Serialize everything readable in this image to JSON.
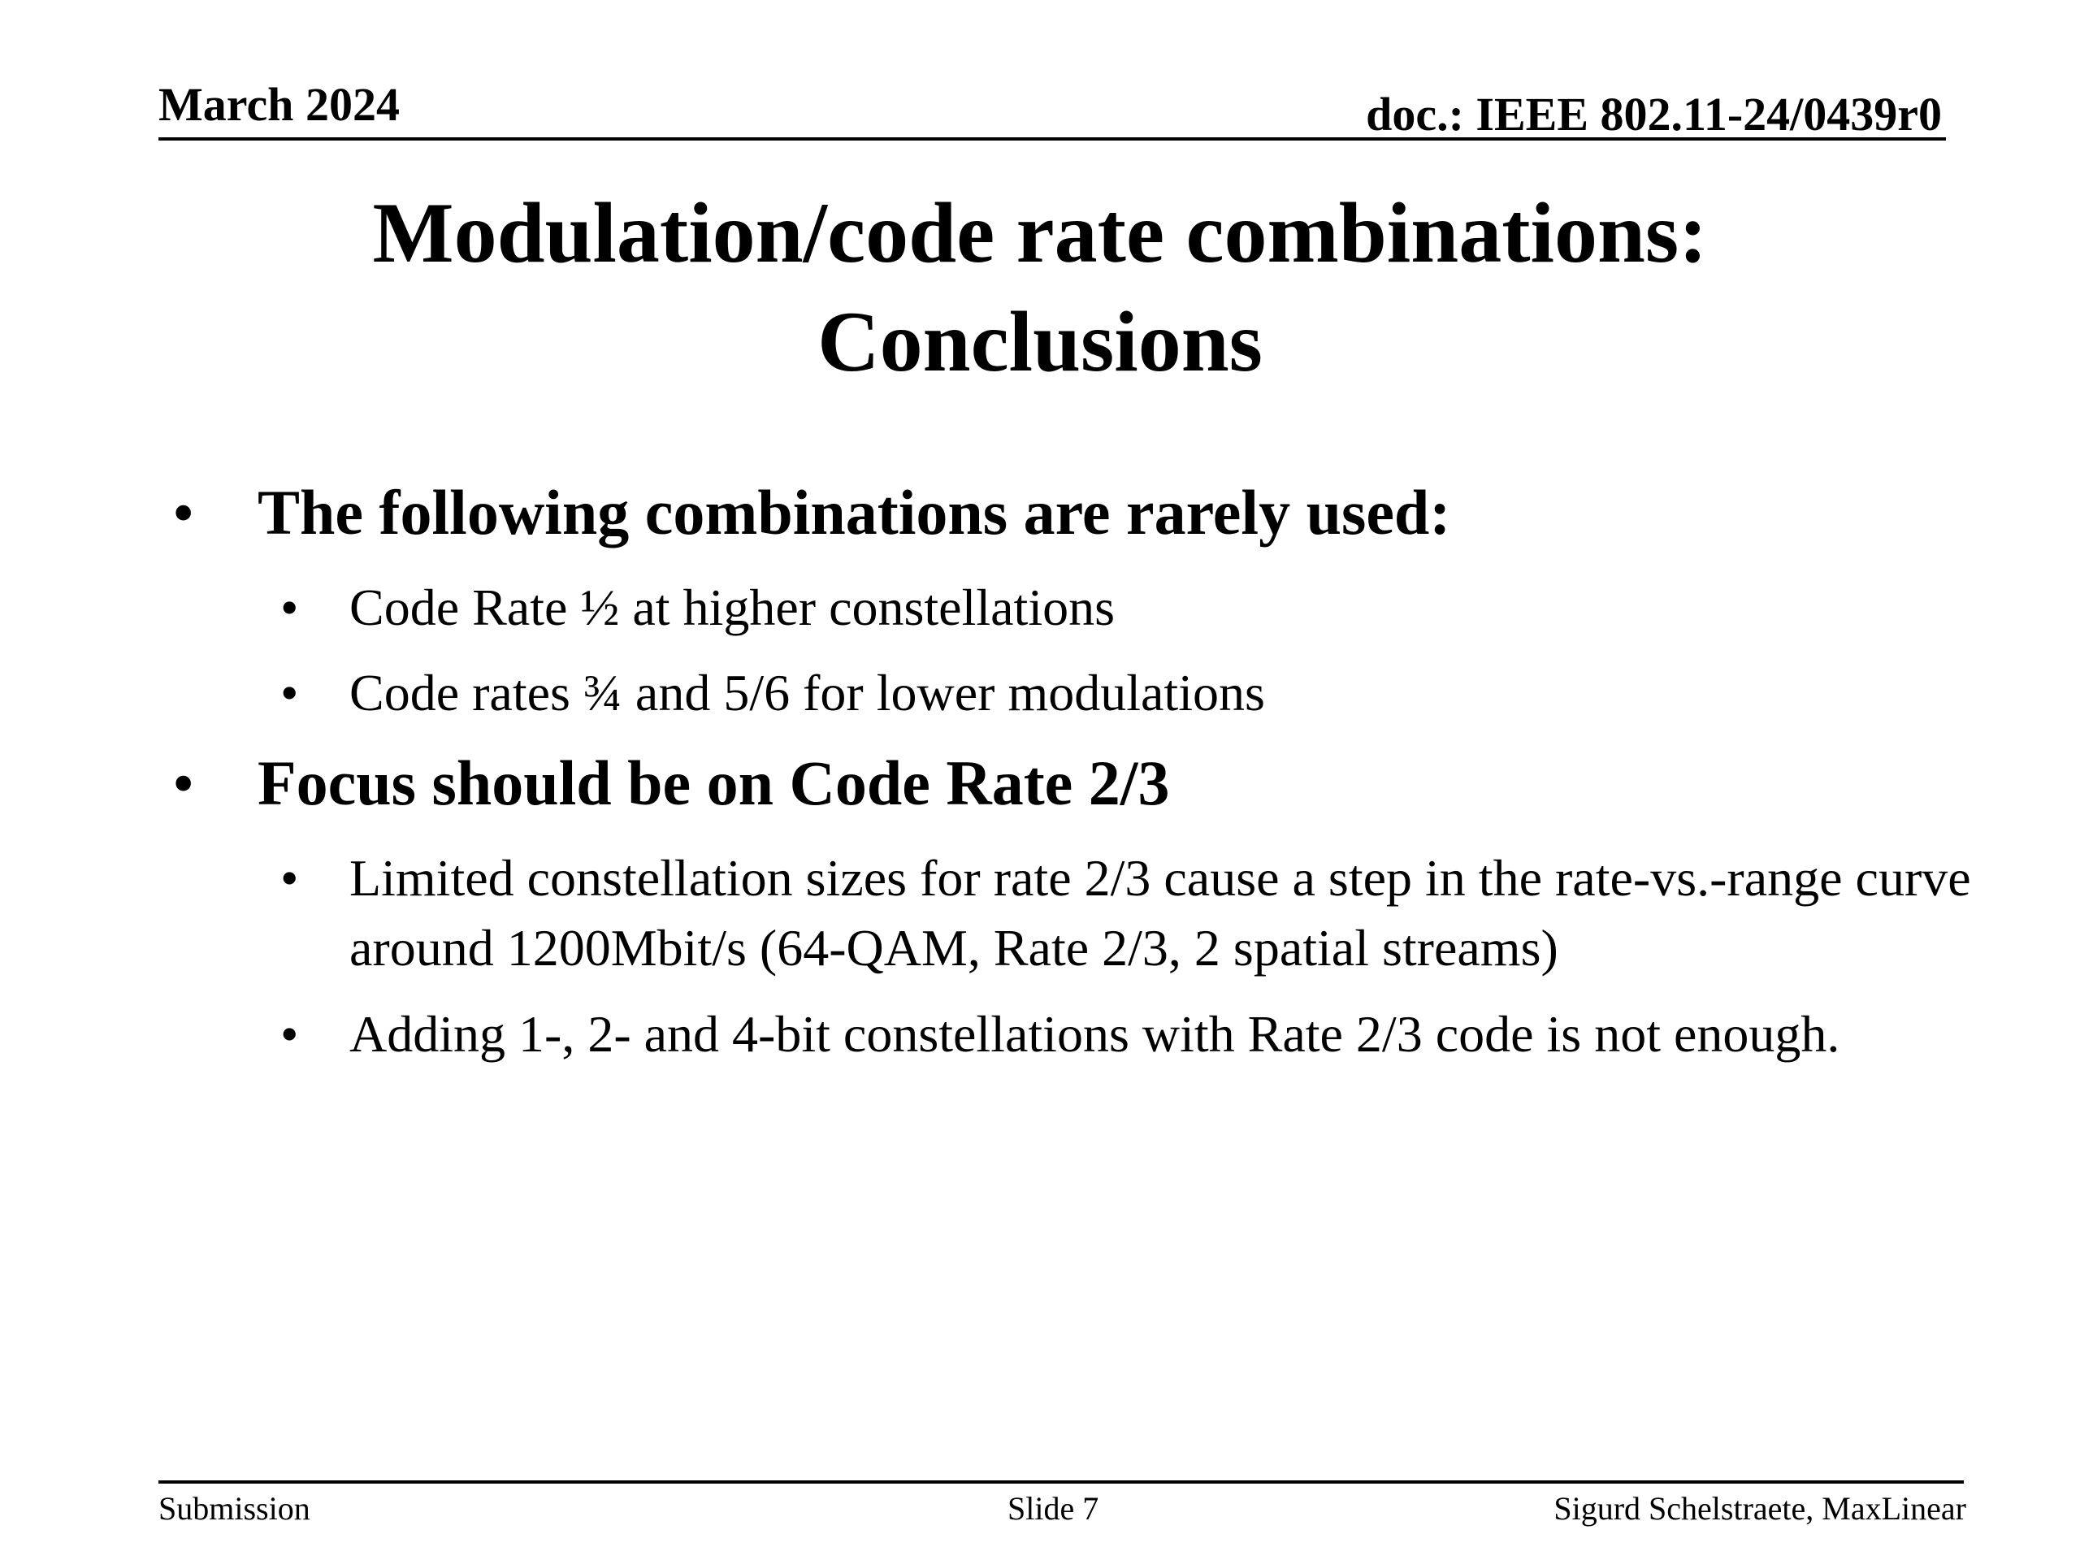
{
  "header": {
    "date": "March 2024",
    "doc": "doc.: IEEE 802.11-24/0439r0"
  },
  "title": {
    "line1": "Modulation/code rate combinations:",
    "line2": "Conclusions"
  },
  "bullets": [
    {
      "text": "The following combinations are rarely used:",
      "subs": [
        "Code Rate ½ at higher constellations",
        "Code rates ¾ and 5/6 for lower modulations"
      ]
    },
    {
      "text": "Focus should be on Code Rate 2/3",
      "subs": [
        "Limited constellation sizes for rate 2/3 cause a step in the rate-vs.-range curve around 1200Mbit/s (64-QAM, Rate 2/3, 2 spatial streams)",
        "Adding 1-, 2- and 4-bit constellations with Rate 2/3 code is not enough."
      ]
    }
  ],
  "bullet_symbol": "•",
  "footer": {
    "left": "Submission",
    "center": "Slide 7",
    "right": "Sigurd Schelstraete, MaxLinear"
  }
}
